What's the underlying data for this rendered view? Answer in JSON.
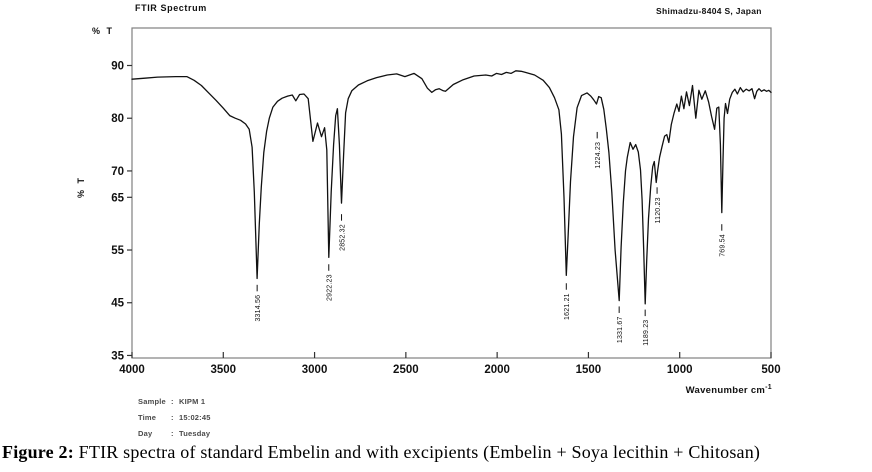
{
  "header": {
    "title": "FTIR Spectrum",
    "instrument": "Shimadzu-8404 S, Japan"
  },
  "axes": {
    "y_label": "% T",
    "y_label_rotated": "% T",
    "x_label_base": "Wavenumber cm",
    "x_label_sup": "-1",
    "y_ticks": [
      90,
      80,
      70,
      65,
      55,
      45,
      35
    ],
    "x_ticks": [
      4000,
      3500,
      3000,
      2500,
      2000,
      1500,
      1000,
      500
    ]
  },
  "sample_info": {
    "rows": [
      {
        "label": "Sample",
        "value": "KIPM 1"
      },
      {
        "label": "Time",
        "value": "15:02:45"
      },
      {
        "label": "Day",
        "value": "Tuesday"
      }
    ]
  },
  "caption": {
    "prefix": "Figure 2:",
    "text": " FTIR spectra of standard Embelin and with excipients (Embelin + Soya lecithin + Chitosan)"
  },
  "chart_data": {
    "type": "line",
    "title": "FTIR Spectrum",
    "xlabel": "Wavenumber cm-1",
    "ylabel": "% T",
    "x_range": [
      4000,
      500
    ],
    "y_axis_ticks": [
      90,
      80,
      70,
      65,
      55,
      45,
      35
    ],
    "ylim_displayed": [
      34.4,
      95.5
    ],
    "grid": false,
    "legend": "none",
    "line_color": "#111111",
    "border_color": "#808080",
    "peaks_labeled": [
      3314.56,
      2922.23,
      2852.32,
      1621.21,
      1224.23,
      1331.67,
      1189.23,
      1120.23,
      769.54
    ],
    "peak_annotations": [
      {
        "label": "3314.56",
        "anchor_w": 3314.56,
        "dash_T": 48.4
      },
      {
        "label": "2922.23",
        "anchor_w": 2922.23,
        "dash_T": 52.3
      },
      {
        "label": "2852.32",
        "anchor_w": 2852.32,
        "dash_T": 61.8
      },
      {
        "label": "1621.21",
        "anchor_w": 1621.21,
        "dash_T": 48.7
      },
      {
        "label": "1224.23",
        "anchor_w": 1452.0,
        "dash_T": 77.4
      },
      {
        "label": "1331.67",
        "anchor_w": 1331.67,
        "dash_T": 44.3
      },
      {
        "label": "1189.23",
        "anchor_w": 1189.23,
        "dash_T": 43.7
      },
      {
        "label": "1120.23",
        "anchor_w": 1124.0,
        "dash_T": 66.9
      },
      {
        "label": "769.54",
        "anchor_w": 769.54,
        "dash_T": 59.9
      }
    ],
    "series": [
      {
        "name": "%T",
        "points": [
          [
            4000,
            87.4
          ],
          [
            3930,
            87.6
          ],
          [
            3860,
            87.8
          ],
          [
            3760,
            87.9
          ],
          [
            3700,
            87.9
          ],
          [
            3660,
            87.2
          ],
          [
            3620,
            86.2
          ],
          [
            3580,
            84.8
          ],
          [
            3540,
            83.4
          ],
          [
            3500,
            81.9
          ],
          [
            3465,
            80.5
          ],
          [
            3435,
            80.0
          ],
          [
            3405,
            79.6
          ],
          [
            3378,
            78.9
          ],
          [
            3358,
            77.9
          ],
          [
            3342,
            74.5
          ],
          [
            3330,
            66.0
          ],
          [
            3314.56,
            49.6
          ],
          [
            3303,
            60.0
          ],
          [
            3292,
            67.0
          ],
          [
            3278,
            73.5
          ],
          [
            3263,
            77.5
          ],
          [
            3248,
            80.0
          ],
          [
            3228,
            82.1
          ],
          [
            3203,
            83.2
          ],
          [
            3178,
            83.8
          ],
          [
            3148,
            84.2
          ],
          [
            3122,
            84.4
          ],
          [
            3103,
            83.3
          ],
          [
            3082,
            84.5
          ],
          [
            3058,
            84.6
          ],
          [
            3035,
            83.7
          ],
          [
            3009,
            75.6
          ],
          [
            2984,
            79.1
          ],
          [
            2962,
            76.5
          ],
          [
            2945,
            78.2
          ],
          [
            2933,
            74.0
          ],
          [
            2922.23,
            53.6
          ],
          [
            2909,
            66.0
          ],
          [
            2896,
            75.0
          ],
          [
            2884,
            80.5
          ],
          [
            2875,
            81.8
          ],
          [
            2864,
            75.0
          ],
          [
            2852.32,
            63.9
          ],
          [
            2841,
            73.0
          ],
          [
            2830,
            81.0
          ],
          [
            2816,
            83.7
          ],
          [
            2796,
            85.2
          ],
          [
            2760,
            86.3
          ],
          [
            2712,
            87.1
          ],
          [
            2660,
            87.7
          ],
          [
            2602,
            88.2
          ],
          [
            2550,
            88.4
          ],
          [
            2505,
            87.9
          ],
          [
            2455,
            88.5
          ],
          [
            2412,
            87.5
          ],
          [
            2382,
            85.7
          ],
          [
            2358,
            84.9
          ],
          [
            2338,
            85.4
          ],
          [
            2318,
            85.6
          ],
          [
            2295,
            85.2
          ],
          [
            2283,
            85.1
          ],
          [
            2240,
            86.4
          ],
          [
            2186,
            87.3
          ],
          [
            2126,
            88.0
          ],
          [
            2062,
            88.2
          ],
          [
            2030,
            88.0
          ],
          [
            2004,
            88.5
          ],
          [
            1976,
            88.3
          ],
          [
            1950,
            88.7
          ],
          [
            1924,
            88.5
          ],
          [
            1898,
            89.0
          ],
          [
            1868,
            88.9
          ],
          [
            1845,
            88.7
          ],
          [
            1795,
            88.2
          ],
          [
            1748,
            87.2
          ],
          [
            1714,
            85.8
          ],
          [
            1686,
            83.9
          ],
          [
            1662,
            81.6
          ],
          [
            1648,
            77.0
          ],
          [
            1634,
            65.0
          ],
          [
            1621.21,
            50.2
          ],
          [
            1611,
            58.0
          ],
          [
            1598,
            68.0
          ],
          [
            1582,
            76.5
          ],
          [
            1562,
            82.0
          ],
          [
            1538,
            84.3
          ],
          [
            1508,
            84.8
          ],
          [
            1487,
            84.2
          ],
          [
            1471,
            83.5
          ],
          [
            1456,
            82.7
          ],
          [
            1444,
            84.1
          ],
          [
            1430,
            83.9
          ],
          [
            1416,
            81.7
          ],
          [
            1402,
            78.0
          ],
          [
            1388,
            73.5
          ],
          [
            1372,
            66.0
          ],
          [
            1354,
            55.0
          ],
          [
            1331.67,
            45.4
          ],
          [
            1321,
            55.5
          ],
          [
            1309,
            64.0
          ],
          [
            1297,
            70.0
          ],
          [
            1287,
            72.6
          ],
          [
            1271,
            75.4
          ],
          [
            1256,
            74.1
          ],
          [
            1241,
            75.0
          ],
          [
            1227,
            73.6
          ],
          [
            1215,
            70.2
          ],
          [
            1206,
            64.5
          ],
          [
            1197,
            55.0
          ],
          [
            1189.23,
            44.8
          ],
          [
            1181,
            53.0
          ],
          [
            1171,
            61.0
          ],
          [
            1159,
            67.0
          ],
          [
            1148,
            70.8
          ],
          [
            1139,
            71.8
          ],
          [
            1129,
            67.8
          ],
          [
            1121,
            70.0
          ],
          [
            1110,
            72.6
          ],
          [
            1097,
            74.6
          ],
          [
            1083,
            76.6
          ],
          [
            1071,
            76.9
          ],
          [
            1060,
            75.4
          ],
          [
            1046,
            78.8
          ],
          [
            1031,
            81.0
          ],
          [
            1016,
            82.7
          ],
          [
            1004,
            81.3
          ],
          [
            991,
            84.2
          ],
          [
            977,
            81.8
          ],
          [
            963,
            85.0
          ],
          [
            947,
            82.4
          ],
          [
            930,
            86.2
          ],
          [
            912,
            80.0
          ],
          [
            895,
            85.3
          ],
          [
            879,
            83.6
          ],
          [
            860,
            85.2
          ],
          [
            842,
            83.1
          ],
          [
            826,
            80.4
          ],
          [
            809,
            77.9
          ],
          [
            797,
            81.9
          ],
          [
            786,
            82.1
          ],
          [
            777,
            75.0
          ],
          [
            769.54,
            62.1
          ],
          [
            763,
            72.0
          ],
          [
            757,
            80.0
          ],
          [
            749,
            82.8
          ],
          [
            738,
            80.9
          ],
          [
            726,
            83.6
          ],
          [
            712,
            84.9
          ],
          [
            698,
            85.5
          ],
          [
            684,
            84.6
          ],
          [
            668,
            85.8
          ],
          [
            652,
            85.0
          ],
          [
            636,
            85.5
          ],
          [
            620,
            85.2
          ],
          [
            604,
            85.6
          ],
          [
            590,
            83.7
          ],
          [
            578,
            85.1
          ],
          [
            566,
            85.6
          ],
          [
            552,
            85.1
          ],
          [
            538,
            85.4
          ],
          [
            524,
            85.1
          ],
          [
            512,
            85.3
          ],
          [
            500,
            84.9
          ]
        ]
      }
    ]
  }
}
